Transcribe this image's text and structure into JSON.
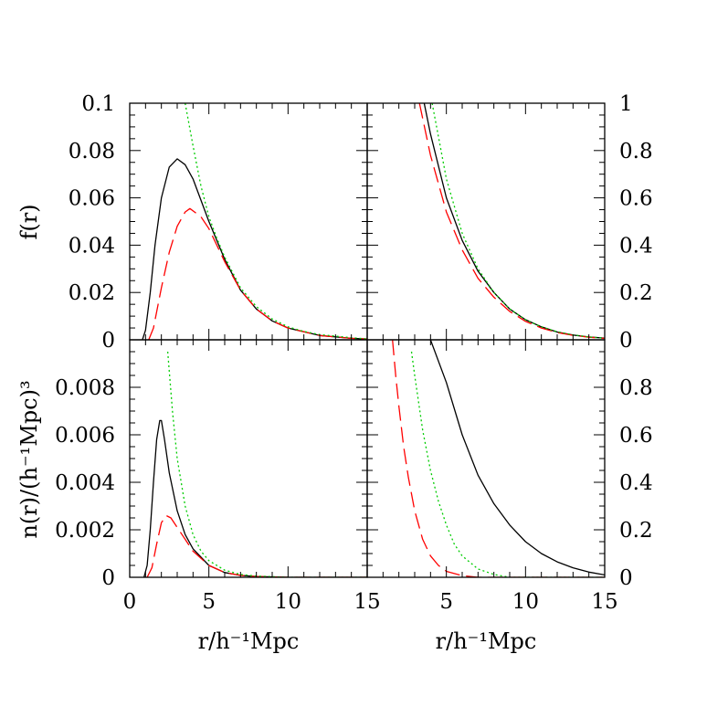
{
  "chart_data": [
    {
      "type": "line",
      "panel": "top-left",
      "ylabel": "f(r)",
      "xlim": [
        0,
        15
      ],
      "ylim": [
        0,
        0.1
      ],
      "ytick_labels": [
        "0",
        "0.02",
        "0.04",
        "0.06",
        "0.08",
        "0.1"
      ],
      "series": [
        {
          "color": "#000000",
          "dash": "solid",
          "x": [
            0.8,
            1.0,
            1.3,
            1.6,
            2.0,
            2.5,
            3.0,
            3.5,
            4.0,
            5.0,
            6.0,
            7.0,
            8.0,
            9.0,
            10.0,
            12.0,
            14.0,
            15.0
          ],
          "y": [
            0.0,
            0.004,
            0.02,
            0.04,
            0.06,
            0.073,
            0.0765,
            0.074,
            0.068,
            0.05,
            0.034,
            0.021,
            0.013,
            0.008,
            0.005,
            0.0018,
            0.0006,
            0.0003
          ]
        },
        {
          "color": "#ff0000",
          "dash": "long-dash",
          "x": [
            1.2,
            1.5,
            2.0,
            2.5,
            3.0,
            3.5,
            3.8,
            4.5,
            5.0,
            6.0,
            7.0,
            8.0,
            9.0,
            10.0,
            12.0,
            14.0,
            15.0
          ],
          "y": [
            0.0,
            0.005,
            0.022,
            0.037,
            0.048,
            0.054,
            0.0555,
            0.052,
            0.047,
            0.033,
            0.021,
            0.013,
            0.008,
            0.005,
            0.0018,
            0.0006,
            0.0003
          ]
        },
        {
          "color": "#00cc00",
          "dash": "dotted",
          "x": [
            3.5,
            4.0,
            4.5,
            5.0,
            5.5,
            6.0,
            7.0,
            8.0,
            9.0,
            10.0,
            11.0,
            12.0,
            14.0,
            15.0
          ],
          "y": [
            0.1,
            0.082,
            0.065,
            0.052,
            0.043,
            0.035,
            0.022,
            0.014,
            0.0088,
            0.0055,
            0.0035,
            0.0022,
            0.0009,
            0.0004
          ]
        }
      ]
    },
    {
      "type": "line",
      "panel": "top-right",
      "xlim": [
        0,
        15
      ],
      "ylim": [
        0,
        1
      ],
      "ytick_labels": [
        "0",
        "0.2",
        "0.4",
        "0.6",
        "0.8",
        "1"
      ],
      "series": [
        {
          "color": "#000000",
          "dash": "solid",
          "x": [
            3.6,
            4.0,
            5.0,
            6.0,
            7.0,
            8.0,
            9.0,
            10.0,
            11.0,
            12.0,
            13.0,
            14.0,
            15.0
          ],
          "y": [
            1.0,
            0.87,
            0.6,
            0.42,
            0.29,
            0.2,
            0.13,
            0.085,
            0.055,
            0.033,
            0.02,
            0.012,
            0.007
          ]
        },
        {
          "color": "#ff0000",
          "dash": "long-dash",
          "x": [
            3.3,
            4.0,
            5.0,
            6.0,
            7.0,
            8.0,
            9.0,
            10.0,
            11.0,
            12.0,
            13.0,
            14.0,
            15.0
          ],
          "y": [
            1.0,
            0.78,
            0.54,
            0.38,
            0.26,
            0.18,
            0.12,
            0.078,
            0.05,
            0.031,
            0.019,
            0.011,
            0.006
          ]
        },
        {
          "color": "#00cc00",
          "dash": "dotted",
          "x": [
            4.1,
            5.0,
            6.0,
            7.0,
            8.0,
            9.0,
            10.0,
            11.0,
            12.0,
            13.0,
            14.0,
            15.0
          ],
          "y": [
            1.0,
            0.68,
            0.45,
            0.3,
            0.2,
            0.13,
            0.085,
            0.055,
            0.034,
            0.021,
            0.012,
            0.007
          ]
        }
      ]
    },
    {
      "type": "line",
      "panel": "bottom-left",
      "ylabel": "n(r)/(h⁻¹Mpc)³",
      "xlabel": "r/h⁻¹Mpc",
      "xlim": [
        0,
        15
      ],
      "ylim": [
        0,
        0.01
      ],
      "xtick_labels": [
        "0",
        "5",
        "10",
        "15"
      ],
      "ytick_labels": [
        "0",
        "0.002",
        "0.004",
        "0.006",
        "0.008"
      ],
      "series": [
        {
          "color": "#000000",
          "dash": "solid",
          "x": [
            0.9,
            1.1,
            1.3,
            1.5,
            1.7,
            1.9,
            2.0,
            2.2,
            2.5,
            3.0,
            3.5,
            4.0,
            5.0,
            6.0,
            7.0,
            8.0,
            10.0,
            15.0
          ],
          "y": [
            0.0,
            0.0005,
            0.002,
            0.004,
            0.0058,
            0.0066,
            0.0066,
            0.0058,
            0.0044,
            0.0028,
            0.0018,
            0.0012,
            0.0005,
            0.0002,
            8e-05,
            3e-05,
            0.0,
            0.0
          ]
        },
        {
          "color": "#ff0000",
          "dash": "long-dash",
          "x": [
            1.1,
            1.4,
            1.7,
            2.0,
            2.3,
            2.6,
            3.0,
            3.5,
            4.0,
            5.0,
            6.0,
            7.0,
            8.0,
            10.0,
            15.0
          ],
          "y": [
            0.0,
            0.0004,
            0.0014,
            0.0023,
            0.0026,
            0.0025,
            0.0021,
            0.0016,
            0.0011,
            0.0005,
            0.0002,
            8e-05,
            3e-05,
            0.0,
            0.0
          ]
        },
        {
          "color": "#00cc00",
          "dash": "dotted",
          "x": [
            2.4,
            2.7,
            3.0,
            3.5,
            4.0,
            4.5,
            5.0,
            6.0,
            7.0,
            8.0,
            10.0,
            15.0
          ],
          "y": [
            0.0095,
            0.007,
            0.005,
            0.003,
            0.0018,
            0.0011,
            0.0007,
            0.0003,
            0.00012,
            5e-05,
            0.0,
            0.0
          ]
        }
      ]
    },
    {
      "type": "line",
      "panel": "bottom-right",
      "xlabel": "r/h⁻¹Mpc",
      "xlim": [
        0,
        15
      ],
      "ylim": [
        0,
        1
      ],
      "xtick_labels": [
        "5",
        "10",
        "15"
      ],
      "ytick_labels": [
        "0",
        "0.2",
        "0.4",
        "0.6",
        "0.8"
      ],
      "series": [
        {
          "color": "#000000",
          "dash": "solid",
          "x": [
            4.0,
            5.0,
            6.0,
            7.0,
            8.0,
            9.0,
            10.0,
            11.0,
            12.0,
            13.0,
            14.0,
            15.0
          ],
          "y": [
            1.0,
            0.82,
            0.6,
            0.43,
            0.31,
            0.22,
            0.15,
            0.1,
            0.065,
            0.04,
            0.022,
            0.01
          ]
        },
        {
          "color": "#ff0000",
          "dash": "long-dash",
          "x": [
            1.6,
            1.8,
            2.0,
            2.3,
            2.6,
            3.0,
            3.5,
            4.0,
            4.5,
            5.0,
            6.0,
            7.0,
            8.0,
            15.0
          ],
          "y": [
            1.0,
            0.85,
            0.72,
            0.55,
            0.42,
            0.28,
            0.16,
            0.09,
            0.05,
            0.025,
            0.007,
            0.0,
            0.0,
            0.0
          ]
        },
        {
          "color": "#00cc00",
          "dash": "dotted",
          "x": [
            2.8,
            3.0,
            3.5,
            4.0,
            4.5,
            5.0,
            5.5,
            6.0,
            7.0,
            8.0,
            9.0,
            15.0
          ],
          "y": [
            0.95,
            0.85,
            0.62,
            0.45,
            0.32,
            0.22,
            0.14,
            0.09,
            0.035,
            0.012,
            0.0,
            0.0
          ]
        }
      ]
    }
  ]
}
